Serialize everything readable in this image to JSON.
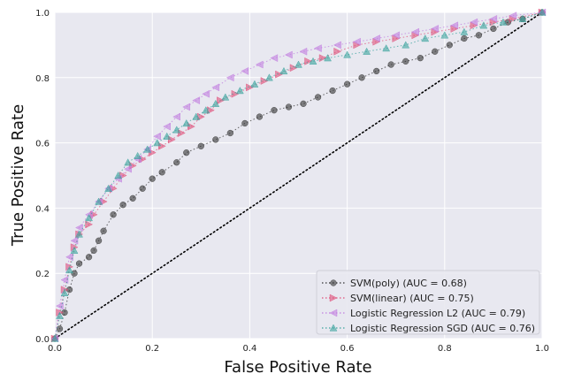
{
  "chart_data": {
    "type": "line",
    "title": "",
    "xlabel": "False Positive Rate",
    "ylabel": "True Positive Rate",
    "xlim": [
      0.0,
      1.0
    ],
    "ylim": [
      0.0,
      1.0
    ],
    "x_ticks": [
      "0.0",
      "0.2",
      "0.4",
      "0.6",
      "0.8",
      "1.0"
    ],
    "y_ticks": [
      "0.0",
      "0.2",
      "0.4",
      "0.6",
      "0.8",
      "1.0"
    ],
    "grid": true,
    "legend_position": "bottom-right",
    "background_color": "#e8e8f0",
    "grid_color": "#ffffff",
    "diagonal": {
      "x": [
        0.0,
        1.0
      ],
      "y": [
        0.0,
        1.0
      ],
      "color": "#000000",
      "style": "dotted"
    },
    "series": [
      {
        "name": "SVM(poly) (AUC = 0.68)",
        "color": "#333333",
        "marker": "circle",
        "x": [
          0.0,
          0.01,
          0.02,
          0.03,
          0.04,
          0.05,
          0.07,
          0.08,
          0.09,
          0.1,
          0.12,
          0.14,
          0.16,
          0.18,
          0.2,
          0.22,
          0.25,
          0.27,
          0.3,
          0.33,
          0.36,
          0.39,
          0.42,
          0.45,
          0.48,
          0.51,
          0.54,
          0.57,
          0.6,
          0.63,
          0.66,
          0.69,
          0.72,
          0.75,
          0.78,
          0.81,
          0.84,
          0.87,
          0.9,
          0.93,
          0.96,
          1.0
        ],
        "y": [
          0.0,
          0.03,
          0.08,
          0.15,
          0.2,
          0.23,
          0.25,
          0.27,
          0.3,
          0.33,
          0.38,
          0.41,
          0.43,
          0.46,
          0.49,
          0.51,
          0.54,
          0.57,
          0.59,
          0.61,
          0.63,
          0.66,
          0.68,
          0.7,
          0.71,
          0.72,
          0.74,
          0.76,
          0.78,
          0.8,
          0.82,
          0.84,
          0.85,
          0.86,
          0.88,
          0.9,
          0.92,
          0.93,
          0.95,
          0.97,
          0.98,
          1.0
        ]
      },
      {
        "name": "SVM(linear) (AUC = 0.75)",
        "color": "#e0507a",
        "marker": "triangle-right",
        "x": [
          0.0,
          0.01,
          0.02,
          0.03,
          0.04,
          0.05,
          0.07,
          0.08,
          0.1,
          0.12,
          0.14,
          0.16,
          0.18,
          0.2,
          0.22,
          0.24,
          0.26,
          0.28,
          0.3,
          0.32,
          0.34,
          0.37,
          0.4,
          0.43,
          0.46,
          0.49,
          0.52,
          0.55,
          0.58,
          0.62,
          0.66,
          0.7,
          0.74,
          0.78,
          0.82,
          0.86,
          0.9,
          0.94,
          1.0
        ],
        "y": [
          0.0,
          0.08,
          0.15,
          0.22,
          0.28,
          0.32,
          0.35,
          0.38,
          0.42,
          0.46,
          0.5,
          0.53,
          0.55,
          0.57,
          0.59,
          0.61,
          0.63,
          0.65,
          0.68,
          0.7,
          0.73,
          0.75,
          0.77,
          0.79,
          0.81,
          0.83,
          0.85,
          0.86,
          0.88,
          0.9,
          0.91,
          0.92,
          0.93,
          0.94,
          0.95,
          0.96,
          0.97,
          0.98,
          1.0
        ]
      },
      {
        "name": "Logistic Regression L2 (AUC = 0.79)",
        "color": "#c27ee0",
        "marker": "triangle-left",
        "x": [
          0.0,
          0.01,
          0.02,
          0.03,
          0.04,
          0.05,
          0.07,
          0.09,
          0.11,
          0.13,
          0.15,
          0.17,
          0.19,
          0.21,
          0.23,
          0.25,
          0.27,
          0.29,
          0.31,
          0.33,
          0.36,
          0.39,
          0.42,
          0.45,
          0.48,
          0.51,
          0.54,
          0.58,
          0.62,
          0.66,
          0.7,
          0.74,
          0.78,
          0.82,
          0.86,
          0.9,
          0.94,
          1.0
        ],
        "y": [
          0.0,
          0.1,
          0.18,
          0.25,
          0.3,
          0.34,
          0.38,
          0.42,
          0.46,
          0.49,
          0.52,
          0.55,
          0.58,
          0.62,
          0.65,
          0.68,
          0.71,
          0.73,
          0.75,
          0.77,
          0.8,
          0.82,
          0.84,
          0.86,
          0.87,
          0.88,
          0.89,
          0.9,
          0.91,
          0.92,
          0.93,
          0.94,
          0.95,
          0.96,
          0.97,
          0.98,
          0.99,
          1.0
        ]
      },
      {
        "name": "Logistic Regression SGD (AUC = 0.76)",
        "color": "#3aa39d",
        "marker": "triangle-up",
        "x": [
          0.0,
          0.01,
          0.02,
          0.03,
          0.04,
          0.05,
          0.07,
          0.09,
          0.11,
          0.13,
          0.15,
          0.17,
          0.19,
          0.21,
          0.23,
          0.25,
          0.27,
          0.29,
          0.31,
          0.33,
          0.35,
          0.38,
          0.41,
          0.44,
          0.47,
          0.5,
          0.53,
          0.56,
          0.6,
          0.64,
          0.68,
          0.72,
          0.76,
          0.8,
          0.84,
          0.88,
          0.92,
          0.96,
          1.0
        ],
        "y": [
          0.0,
          0.07,
          0.14,
          0.21,
          0.27,
          0.32,
          0.37,
          0.42,
          0.46,
          0.5,
          0.54,
          0.56,
          0.58,
          0.6,
          0.62,
          0.64,
          0.66,
          0.68,
          0.7,
          0.72,
          0.74,
          0.76,
          0.78,
          0.8,
          0.82,
          0.84,
          0.85,
          0.86,
          0.87,
          0.88,
          0.89,
          0.9,
          0.92,
          0.93,
          0.94,
          0.96,
          0.97,
          0.98,
          1.0
        ]
      }
    ]
  }
}
